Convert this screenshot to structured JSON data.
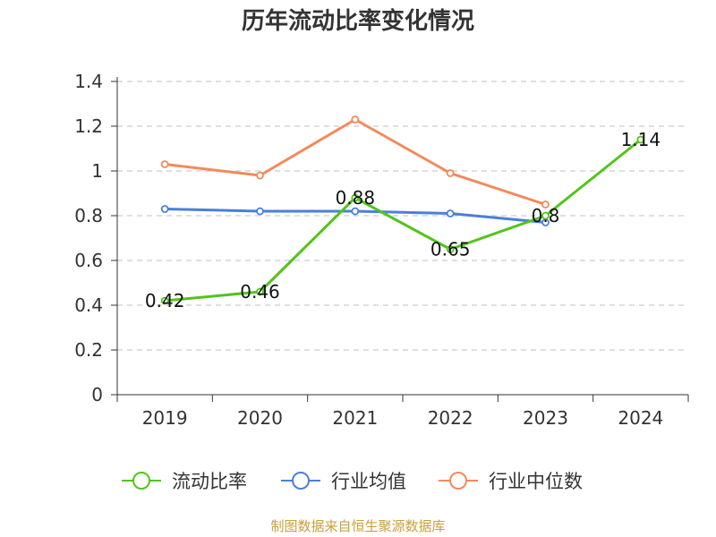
{
  "title": "历年流动比率变化情况",
  "source": "制图数据来自恒生聚源数据库",
  "chart_data": {
    "type": "line",
    "title": "历年流动比率变化情况",
    "categories": [
      "2019",
      "2020",
      "2021",
      "2022",
      "2023",
      "2024"
    ],
    "ylim": [
      0,
      1.4
    ],
    "yticks": [
      "0",
      "0.2",
      "0.4",
      "0.6",
      "0.8",
      "1",
      "1.2",
      "1.4"
    ],
    "grid": true,
    "legend": "bottom",
    "series": [
      {
        "name": "流动比率",
        "color": "#52c41a",
        "values": [
          0.42,
          0.46,
          0.88,
          0.65,
          0.8,
          1.14
        ],
        "labels": [
          "0.42",
          "0.46",
          "0.88",
          "0.65",
          "0.8",
          "1.14"
        ]
      },
      {
        "name": "行业均值",
        "color": "#4a7fdc",
        "values": [
          0.83,
          0.82,
          0.82,
          0.81,
          0.77,
          null
        ]
      },
      {
        "name": "行业中位数",
        "color": "#f4895c",
        "values": [
          1.03,
          0.98,
          1.23,
          0.99,
          0.85,
          null
        ]
      }
    ]
  }
}
